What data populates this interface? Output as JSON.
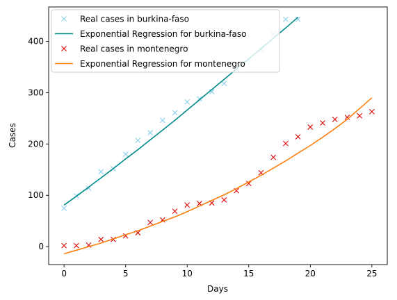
{
  "chart_data": {
    "type": "scatter",
    "xlabel": "Days",
    "ylabel": "Cases",
    "xlim": [
      -1.25,
      26.25
    ],
    "ylim": [
      -35,
      467
    ],
    "xticks": [
      0,
      5,
      10,
      15,
      20,
      25
    ],
    "yticks": [
      0,
      100,
      200,
      300,
      400
    ],
    "grid": false,
    "legend_location": "top-left",
    "series": [
      {
        "name": "Real cases in burkina-faso",
        "kind": "marker",
        "marker": "x",
        "color": "#87ceeb",
        "x": [
          0,
          1,
          2,
          3,
          4,
          5,
          6,
          7,
          8,
          9,
          10,
          11,
          12,
          13,
          14,
          15,
          16,
          17,
          18,
          19
        ],
        "y": [
          75,
          99,
          114,
          146,
          152,
          180,
          207,
          222,
          246,
          261,
          282,
          288,
          302,
          318,
          345,
          364,
          384,
          414,
          443,
          443
        ]
      },
      {
        "name": "Exponential Regression for burkina-faso",
        "kind": "line",
        "color": "#008b8b",
        "x": [
          0,
          1,
          2,
          3,
          4,
          5,
          6,
          7,
          8,
          9,
          10,
          11,
          12,
          13,
          14,
          15,
          16,
          17,
          18,
          19
        ],
        "y": [
          81,
          98,
          116,
          134,
          152,
          171,
          189,
          208,
          227,
          246,
          266,
          286,
          306,
          326,
          346,
          366,
          386,
          406,
          426,
          447
        ]
      },
      {
        "name": "Real cases in montenegro",
        "kind": "marker",
        "marker": "x",
        "color": "#e00000",
        "x": [
          0,
          1,
          2,
          3,
          4,
          5,
          6,
          7,
          8,
          9,
          10,
          11,
          12,
          13,
          14,
          15,
          16,
          17,
          18,
          19,
          20,
          21,
          22,
          23,
          24,
          25
        ],
        "y": [
          2,
          2,
          3,
          14,
          14,
          21,
          27,
          47,
          52,
          69,
          81,
          84,
          85,
          91,
          109,
          123,
          144,
          174,
          201,
          214,
          233,
          241,
          248,
          252,
          255,
          263
        ]
      },
      {
        "name": "Exponential Regression for montenegro",
        "kind": "line",
        "color": "#ff7f0e",
        "x": [
          0,
          1,
          2,
          3,
          4,
          5,
          6,
          7,
          8,
          9,
          10,
          11,
          12,
          13,
          14,
          15,
          16,
          17,
          18,
          19,
          20,
          21,
          22,
          23,
          24,
          25
        ],
        "y": [
          -14,
          -7,
          0,
          7,
          15,
          23,
          31,
          40,
          49,
          58,
          68,
          79,
          90,
          101,
          113,
          126,
          139,
          153,
          167,
          182,
          197,
          213,
          230,
          248,
          269,
          290
        ]
      }
    ]
  }
}
